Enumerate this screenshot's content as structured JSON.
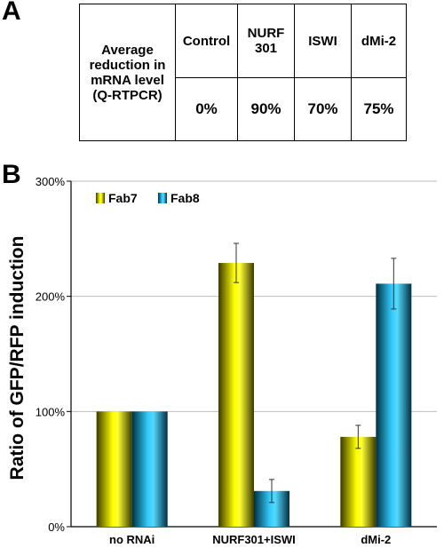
{
  "panel_a": {
    "label": "A",
    "row_header": "Average reduction in mRNA level (Q-RTPCR)",
    "columns": [
      "Control",
      "NURF 301",
      "ISWI",
      "dMi-2"
    ],
    "values": [
      "0%",
      "90%",
      "70%",
      "75%"
    ]
  },
  "panel_b": {
    "label": "B"
  },
  "chart_data": {
    "type": "bar",
    "categories": [
      "no RNAi",
      "NURF301+ISWI",
      "dMi-2"
    ],
    "series": [
      {
        "name": "Fab7",
        "values": [
          100,
          229,
          78
        ],
        "errors": [
          0.5,
          17,
          10
        ]
      },
      {
        "name": "Fab8",
        "values": [
          100,
          31,
          211
        ],
        "errors": [
          0.5,
          10,
          22
        ]
      }
    ],
    "ylabel": "Ratio of GFP/RFP induction",
    "xlabel": "",
    "ylim": [
      0,
      300
    ],
    "yticks": [
      0,
      100,
      200,
      300
    ],
    "ytick_labels": [
      "0%",
      "100%",
      "200%",
      "300%"
    ],
    "grid": true,
    "legend_position": "top-left",
    "colors": {
      "Fab7": "#ffff00",
      "Fab8": "#33ccff"
    }
  }
}
